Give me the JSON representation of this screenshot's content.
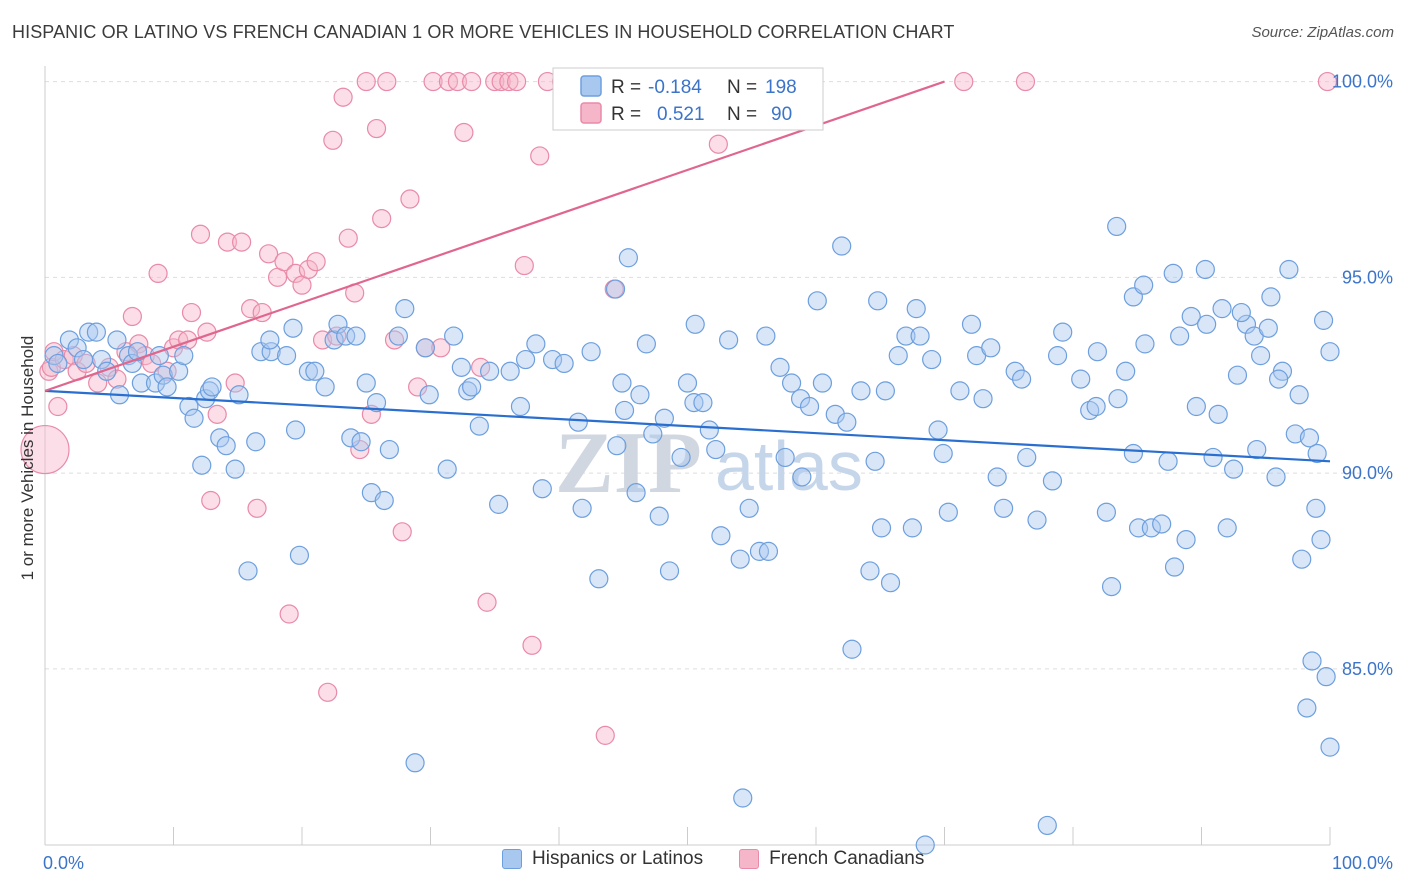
{
  "title": "HISPANIC OR LATINO VS FRENCH CANADIAN 1 OR MORE VEHICLES IN HOUSEHOLD CORRELATION CHART",
  "source": "Source: ZipAtlas.com",
  "watermark": {
    "zip": "ZIP",
    "atlas": "atlas"
  },
  "colors": {
    "blue_fill": "#a9c8ef",
    "blue_stroke": "#6d9fde",
    "blue_line": "#2a6fcf",
    "pink_fill": "#f6b6c9",
    "pink_stroke": "#e98aa8",
    "pink_line": "#e0668e",
    "axis_text": "#3b74c9",
    "grid": "#dddddd"
  },
  "legend_box": {
    "rows": [
      {
        "r_label": "R =",
        "r_value": "-0.184",
        "n_label": "N =",
        "n_value": "198"
      },
      {
        "r_label": "R =",
        "r_value": "0.521",
        "n_label": "N =",
        "n_value": "90"
      }
    ]
  },
  "bottom_legend": {
    "blue": "Hispanics or Latinos",
    "pink": "French Canadians"
  },
  "chart_data": {
    "type": "scatter",
    "title": "HISPANIC OR LATINO VS FRENCH CANADIAN 1 OR MORE VEHICLES IN HOUSEHOLD CORRELATION CHART",
    "xlabel": "",
    "ylabel": "1 or more Vehicles in Household",
    "xlim": [
      0,
      100
    ],
    "ylim": [
      80.5,
      100.5
    ],
    "x_tick_labels": [
      "0.0%",
      "100.0%"
    ],
    "y_ticks": [
      85,
      90,
      95,
      100
    ],
    "y_tick_labels": [
      "85.0%",
      "90.0%",
      "95.0%",
      "100.0%"
    ],
    "grid": "horizontal dashed",
    "series": [
      {
        "name": "Hispanics or Latinos",
        "color": "#a9c8ef",
        "trend": {
          "x": [
            0,
            100
          ],
          "y": [
            92.1,
            90.3
          ]
        },
        "points": [
          [
            0.7,
            93.0
          ],
          [
            1.0,
            92.8
          ],
          [
            1.9,
            93.4
          ],
          [
            2.5,
            93.2
          ],
          [
            3.0,
            92.9
          ],
          [
            3.4,
            93.6
          ],
          [
            4.0,
            93.6
          ],
          [
            4.4,
            92.9
          ],
          [
            4.8,
            92.6
          ],
          [
            5.6,
            93.4
          ],
          [
            5.8,
            92.0
          ],
          [
            6.5,
            93.0
          ],
          [
            6.8,
            92.8
          ],
          [
            7.2,
            93.1
          ],
          [
            7.5,
            92.3
          ],
          [
            8.6,
            92.3
          ],
          [
            8.9,
            93.0
          ],
          [
            9.2,
            92.5
          ],
          [
            9.5,
            92.2
          ],
          [
            10.4,
            92.6
          ],
          [
            10.8,
            93.0
          ],
          [
            11.2,
            91.7
          ],
          [
            11.6,
            91.4
          ],
          [
            12.2,
            90.2
          ],
          [
            12.5,
            91.9
          ],
          [
            12.8,
            92.1
          ],
          [
            13.0,
            92.2
          ],
          [
            13.6,
            90.9
          ],
          [
            14.1,
            90.7
          ],
          [
            14.8,
            90.1
          ],
          [
            15.1,
            92.0
          ],
          [
            15.8,
            87.5
          ],
          [
            16.4,
            90.8
          ],
          [
            16.8,
            93.1
          ],
          [
            17.6,
            93.1
          ],
          [
            17.5,
            93.4
          ],
          [
            18.8,
            93.0
          ],
          [
            19.3,
            93.7
          ],
          [
            19.5,
            91.1
          ],
          [
            19.8,
            87.9
          ],
          [
            20.5,
            92.6
          ],
          [
            21.0,
            92.6
          ],
          [
            21.8,
            92.2
          ],
          [
            22.5,
            93.4
          ],
          [
            22.8,
            93.8
          ],
          [
            23.4,
            93.5
          ],
          [
            23.8,
            90.9
          ],
          [
            24.2,
            93.5
          ],
          [
            24.6,
            90.8
          ],
          [
            25.0,
            92.3
          ],
          [
            25.4,
            89.5
          ],
          [
            25.8,
            91.8
          ],
          [
            26.4,
            89.3
          ],
          [
            26.8,
            90.6
          ],
          [
            27.5,
            93.5
          ],
          [
            28.0,
            94.2
          ],
          [
            28.8,
            82.6
          ],
          [
            29.6,
            93.2
          ],
          [
            29.9,
            92.0
          ],
          [
            31.3,
            90.1
          ],
          [
            31.8,
            93.5
          ],
          [
            32.4,
            92.7
          ],
          [
            32.9,
            92.1
          ],
          [
            33.2,
            92.2
          ],
          [
            33.8,
            91.2
          ],
          [
            34.6,
            92.6
          ],
          [
            35.3,
            89.2
          ],
          [
            36.2,
            92.6
          ],
          [
            37.0,
            91.7
          ],
          [
            37.4,
            92.9
          ],
          [
            38.2,
            93.3
          ],
          [
            38.7,
            89.6
          ],
          [
            39.5,
            92.9
          ],
          [
            40.4,
            92.8
          ],
          [
            41.5,
            91.3
          ],
          [
            41.8,
            89.1
          ],
          [
            42.5,
            93.1
          ],
          [
            43.1,
            87.3
          ],
          [
            44.5,
            90.7
          ],
          [
            44.9,
            92.3
          ],
          [
            45.1,
            91.6
          ],
          [
            46.3,
            92.0
          ],
          [
            46.8,
            93.3
          ],
          [
            47.3,
            91.0
          ],
          [
            47.8,
            88.9
          ],
          [
            48.2,
            91.4
          ],
          [
            48.6,
            87.5
          ],
          [
            49.5,
            90.4
          ],
          [
            50.0,
            92.3
          ],
          [
            50.5,
            91.8
          ],
          [
            51.2,
            91.8
          ],
          [
            51.7,
            91.1
          ],
          [
            52.2,
            90.6
          ],
          [
            52.6,
            88.4
          ],
          [
            53.2,
            93.4
          ],
          [
            54.1,
            87.8
          ],
          [
            54.8,
            89.1
          ],
          [
            55.6,
            88.0
          ],
          [
            56.3,
            88.0
          ],
          [
            57.2,
            92.7
          ],
          [
            57.6,
            90.4
          ],
          [
            58.1,
            92.3
          ],
          [
            58.8,
            91.9
          ],
          [
            59.5,
            91.7
          ],
          [
            60.1,
            94.4
          ],
          [
            60.5,
            92.3
          ],
          [
            61.5,
            91.5
          ],
          [
            62.4,
            91.3
          ],
          [
            62.8,
            85.5
          ],
          [
            63.5,
            92.1
          ],
          [
            64.2,
            87.5
          ],
          [
            64.6,
            90.3
          ],
          [
            65.1,
            88.6
          ],
          [
            65.4,
            92.1
          ],
          [
            65.8,
            87.2
          ],
          [
            66.4,
            93.0
          ],
          [
            67.0,
            93.5
          ],
          [
            67.5,
            88.6
          ],
          [
            68.1,
            93.5
          ],
          [
            69.0,
            92.9
          ],
          [
            69.5,
            91.1
          ],
          [
            69.9,
            90.5
          ],
          [
            70.3,
            89.0
          ],
          [
            71.2,
            92.1
          ],
          [
            72.5,
            93.0
          ],
          [
            73.0,
            91.9
          ],
          [
            74.1,
            89.9
          ],
          [
            74.6,
            89.1
          ],
          [
            75.5,
            92.6
          ],
          [
            76.0,
            92.4
          ],
          [
            76.4,
            90.4
          ],
          [
            77.2,
            88.8
          ],
          [
            78.4,
            89.8
          ],
          [
            78.8,
            93.0
          ],
          [
            79.2,
            93.6
          ],
          [
            80.6,
            92.4
          ],
          [
            81.3,
            91.6
          ],
          [
            81.8,
            91.7
          ],
          [
            82.6,
            89.0
          ],
          [
            83.0,
            87.1
          ],
          [
            83.5,
            91.9
          ],
          [
            84.1,
            92.6
          ],
          [
            84.7,
            90.5
          ],
          [
            85.1,
            88.6
          ],
          [
            85.6,
            93.3
          ],
          [
            86.1,
            88.6
          ],
          [
            86.9,
            88.7
          ],
          [
            87.4,
            90.3
          ],
          [
            87.9,
            87.6
          ],
          [
            88.3,
            93.5
          ],
          [
            88.8,
            88.3
          ],
          [
            89.2,
            94.0
          ],
          [
            89.6,
            91.7
          ],
          [
            90.4,
            93.8
          ],
          [
            90.9,
            90.4
          ],
          [
            91.3,
            91.5
          ],
          [
            92.0,
            88.6
          ],
          [
            92.5,
            90.1
          ],
          [
            92.8,
            92.5
          ],
          [
            93.5,
            93.8
          ],
          [
            94.1,
            93.5
          ],
          [
            94.3,
            90.6
          ],
          [
            95.2,
            93.7
          ],
          [
            95.8,
            89.9
          ],
          [
            96.3,
            92.6
          ],
          [
            96.8,
            95.2
          ],
          [
            97.3,
            91.0
          ],
          [
            97.8,
            87.8
          ],
          [
            98.2,
            84.0
          ],
          [
            98.6,
            85.2
          ],
          [
            98.9,
            89.1
          ],
          [
            99.3,
            88.3
          ],
          [
            99.7,
            84.8
          ],
          [
            100.0,
            83.0
          ],
          [
            78.0,
            81.0
          ],
          [
            68.5,
            80.5
          ],
          [
            54.3,
            81.7
          ],
          [
            56.1,
            93.5
          ],
          [
            50.6,
            93.8
          ],
          [
            45.4,
            95.5
          ],
          [
            44.4,
            94.7
          ],
          [
            72.1,
            93.8
          ],
          [
            73.6,
            93.2
          ],
          [
            81.9,
            93.1
          ],
          [
            83.4,
            96.3
          ],
          [
            84.7,
            94.5
          ],
          [
            85.5,
            94.8
          ],
          [
            87.8,
            95.1
          ],
          [
            90.3,
            95.2
          ],
          [
            91.6,
            94.2
          ],
          [
            93.1,
            94.1
          ],
          [
            94.6,
            93.0
          ],
          [
            95.4,
            94.5
          ],
          [
            96.0,
            92.4
          ],
          [
            97.6,
            92.0
          ],
          [
            98.4,
            90.9
          ],
          [
            99.0,
            90.5
          ],
          [
            99.5,
            93.9
          ],
          [
            100.0,
            93.1
          ],
          [
            62.0,
            95.8
          ],
          [
            64.8,
            94.4
          ],
          [
            67.8,
            94.2
          ],
          [
            58.9,
            89.9
          ],
          [
            46.0,
            89.5
          ]
        ]
      },
      {
        "name": "French Canadians",
        "color": "#f6b6c9",
        "trend": {
          "x": [
            0,
            70
          ],
          "y": [
            92.1,
            100.0
          ]
        },
        "points": [
          [
            0.3,
            92.6
          ],
          [
            0.5,
            92.7
          ],
          [
            0.7,
            93.1
          ],
          [
            1.0,
            91.7
          ],
          [
            1.5,
            92.9
          ],
          [
            2.2,
            93.0
          ],
          [
            2.5,
            92.6
          ],
          [
            3.2,
            92.8
          ],
          [
            4.1,
            92.3
          ],
          [
            5.0,
            92.7
          ],
          [
            5.6,
            92.4
          ],
          [
            6.3,
            93.1
          ],
          [
            6.8,
            94.0
          ],
          [
            7.3,
            93.3
          ],
          [
            7.8,
            93.0
          ],
          [
            8.3,
            92.8
          ],
          [
            8.8,
            95.1
          ],
          [
            9.5,
            92.6
          ],
          [
            10.0,
            93.2
          ],
          [
            10.4,
            93.4
          ],
          [
            11.1,
            93.4
          ],
          [
            11.4,
            94.1
          ],
          [
            12.1,
            96.1
          ],
          [
            12.6,
            93.6
          ],
          [
            12.9,
            89.3
          ],
          [
            13.4,
            91.5
          ],
          [
            14.2,
            95.9
          ],
          [
            14.8,
            92.3
          ],
          [
            15.3,
            95.9
          ],
          [
            16.0,
            94.2
          ],
          [
            16.5,
            89.1
          ],
          [
            16.9,
            94.1
          ],
          [
            17.4,
            95.6
          ],
          [
            18.1,
            95.0
          ],
          [
            18.6,
            95.4
          ],
          [
            19.0,
            86.4
          ],
          [
            19.5,
            95.1
          ],
          [
            20.0,
            94.8
          ],
          [
            20.5,
            95.2
          ],
          [
            21.1,
            95.4
          ],
          [
            21.6,
            93.4
          ],
          [
            22.0,
            84.4
          ],
          [
            22.4,
            98.5
          ],
          [
            22.7,
            93.5
          ],
          [
            23.2,
            99.6
          ],
          [
            23.6,
            96.0
          ],
          [
            24.1,
            94.6
          ],
          [
            24.5,
            90.6
          ],
          [
            25.0,
            100.0
          ],
          [
            25.4,
            91.5
          ],
          [
            25.8,
            98.8
          ],
          [
            26.2,
            96.5
          ],
          [
            26.6,
            100.0
          ],
          [
            27.2,
            93.4
          ],
          [
            27.8,
            88.5
          ],
          [
            28.4,
            97.0
          ],
          [
            29.0,
            92.2
          ],
          [
            29.6,
            93.2
          ],
          [
            30.2,
            100.0
          ],
          [
            30.8,
            93.2
          ],
          [
            31.4,
            100.0
          ],
          [
            32.1,
            100.0
          ],
          [
            32.6,
            98.7
          ],
          [
            33.2,
            100.0
          ],
          [
            33.9,
            92.7
          ],
          [
            34.4,
            86.7
          ],
          [
            35.0,
            100.0
          ],
          [
            35.5,
            100.0
          ],
          [
            36.1,
            100.0
          ],
          [
            36.7,
            100.0
          ],
          [
            37.3,
            95.3
          ],
          [
            37.9,
            85.6
          ],
          [
            38.5,
            98.1
          ],
          [
            39.1,
            100.0
          ],
          [
            40.2,
            100.0
          ],
          [
            41.5,
            100.0
          ],
          [
            42.8,
            100.0
          ],
          [
            43.6,
            83.3
          ],
          [
            44.3,
            94.7
          ],
          [
            45.5,
            100.0
          ],
          [
            47.9,
            100.0
          ],
          [
            49.2,
            100.0
          ],
          [
            50.5,
            100.0
          ],
          [
            52.4,
            98.4
          ],
          [
            54.8,
            100.0
          ],
          [
            56.3,
            100.0
          ],
          [
            71.5,
            100.0
          ],
          [
            76.3,
            100.0
          ],
          [
            99.8,
            100.0
          ],
          [
            0.0,
            90.6
          ]
        ]
      }
    ]
  }
}
